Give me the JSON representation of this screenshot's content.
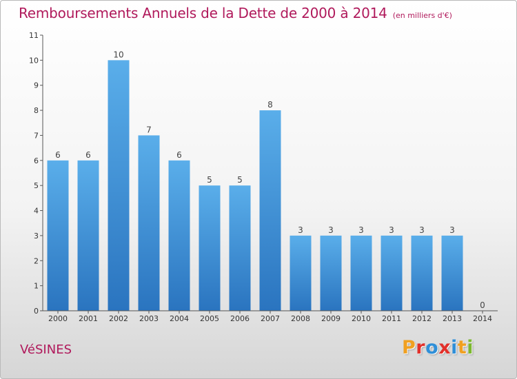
{
  "header": {
    "title": "Remboursements Annuels de la Dette de 2000 à 2014",
    "subtitle": "(en milliers d'€)"
  },
  "footer": {
    "commune": "VéSINES",
    "logo": "Proxiti",
    "logo_colors": [
      "#f0a020",
      "#e2302a",
      "#2f8fd8",
      "#e2302a",
      "#2f8fd8",
      "#f0a020",
      "#7cb82f"
    ]
  },
  "colors": {
    "bar_light": "#5aaeea",
    "bar_dark": "#2a74bf",
    "accent": "#b0195b",
    "axis": "#555555"
  },
  "chart_data": {
    "type": "bar",
    "categories": [
      "2000",
      "2001",
      "2002",
      "2003",
      "2004",
      "2005",
      "2006",
      "2007",
      "2008",
      "2009",
      "2010",
      "2011",
      "2012",
      "2013",
      "2014"
    ],
    "values": [
      6,
      6,
      10,
      7,
      6,
      5,
      5,
      8,
      3,
      3,
      3,
      3,
      3,
      3,
      0
    ],
    "ylim": [
      0,
      11
    ],
    "yticks": [
      "0",
      "1",
      "2",
      "3",
      "4",
      "5",
      "6",
      "7",
      "8",
      "9",
      "10",
      "11"
    ],
    "grid": false,
    "legend": "none"
  }
}
